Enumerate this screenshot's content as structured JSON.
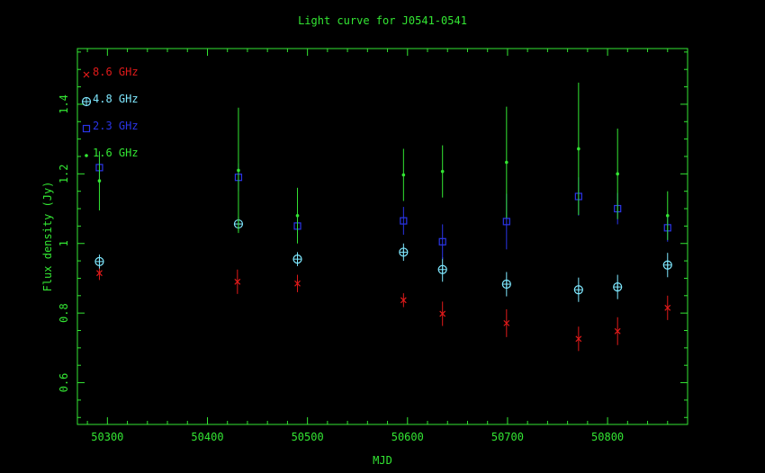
{
  "chart_data": {
    "type": "scatter",
    "title": "Light curve for J0541-0541",
    "xlabel": "MJD",
    "ylabel": "Flux density (Jy)",
    "xlim": [
      50270,
      50880
    ],
    "ylim": [
      0.48,
      1.56
    ],
    "xticks": [
      50300,
      50400,
      50500,
      50600,
      50700,
      50800
    ],
    "yticks": [
      0.6,
      0.8,
      1,
      1.2,
      1.4
    ],
    "xtick_labels": [
      "50300",
      "50400",
      "50500",
      "50600",
      "50700",
      "50800"
    ],
    "ytick_labels": [
      "0.6",
      "0.8",
      "1",
      "1.2",
      "1.4"
    ],
    "grid": false,
    "legend_position": "top-left",
    "axis_color": "#33e633",
    "series": [
      {
        "name": "8.6 GHz",
        "marker": "x",
        "color": "#e01a1a",
        "points": [
          {
            "x": 50292,
            "y": 0.915,
            "err": 0.02
          },
          {
            "x": 50430,
            "y": 0.89,
            "err": 0.035
          },
          {
            "x": 50490,
            "y": 0.885,
            "err": 0.025
          },
          {
            "x": 50596,
            "y": 0.837,
            "err": 0.02
          },
          {
            "x": 50635,
            "y": 0.798,
            "err": 0.035
          },
          {
            "x": 50699,
            "y": 0.771,
            "err": 0.04
          },
          {
            "x": 50771,
            "y": 0.726,
            "err": 0.035
          },
          {
            "x": 50810,
            "y": 0.748,
            "err": 0.04
          },
          {
            "x": 50860,
            "y": 0.815,
            "err": 0.035
          }
        ]
      },
      {
        "name": "4.8 GHz",
        "marker": "circle-plus",
        "color": "#7fe8ff",
        "points": [
          {
            "x": 50292,
            "y": 0.948,
            "err": 0.02
          },
          {
            "x": 50431,
            "y": 1.056,
            "err": 0.02
          },
          {
            "x": 50490,
            "y": 0.955,
            "err": 0.02
          },
          {
            "x": 50596,
            "y": 0.975,
            "err": 0.025
          },
          {
            "x": 50635,
            "y": 0.925,
            "err": 0.035
          },
          {
            "x": 50699,
            "y": 0.883,
            "err": 0.035
          },
          {
            "x": 50771,
            "y": 0.867,
            "err": 0.035
          },
          {
            "x": 50810,
            "y": 0.875,
            "err": 0.035
          },
          {
            "x": 50860,
            "y": 0.938,
            "err": 0.035
          }
        ]
      },
      {
        "name": "2.3 GHz",
        "marker": "square",
        "color": "#2a35e8",
        "points": [
          {
            "x": 50292,
            "y": 1.218,
            "err": 0.045
          },
          {
            "x": 50431,
            "y": 1.19,
            "err": 0.04
          },
          {
            "x": 50490,
            "y": 1.05,
            "err": 0.035
          },
          {
            "x": 50596,
            "y": 1.065,
            "err": 0.04
          },
          {
            "x": 50635,
            "y": 1.005,
            "err": 0.05
          },
          {
            "x": 50699,
            "y": 1.063,
            "err": 0.08
          },
          {
            "x": 50771,
            "y": 1.135,
            "err": 0.055
          },
          {
            "x": 50810,
            "y": 1.1,
            "err": 0.045
          },
          {
            "x": 50860,
            "y": 1.045,
            "err": 0.04
          }
        ]
      },
      {
        "name": "1.6 GHz",
        "marker": "dot",
        "color": "#33e633",
        "points": [
          {
            "x": 50292,
            "y": 1.18,
            "err": 0.085
          },
          {
            "x": 50431,
            "y": 1.21,
            "err": 0.18
          },
          {
            "x": 50490,
            "y": 1.08,
            "err": 0.08
          },
          {
            "x": 50596,
            "y": 1.197,
            "err": 0.075
          },
          {
            "x": 50635,
            "y": 1.207,
            "err": 0.075
          },
          {
            "x": 50699,
            "y": 1.233,
            "err": 0.16
          },
          {
            "x": 50771,
            "y": 1.272,
            "err": 0.19
          },
          {
            "x": 50810,
            "y": 1.2,
            "err": 0.13
          },
          {
            "x": 50860,
            "y": 1.08,
            "err": 0.07
          }
        ]
      }
    ]
  }
}
